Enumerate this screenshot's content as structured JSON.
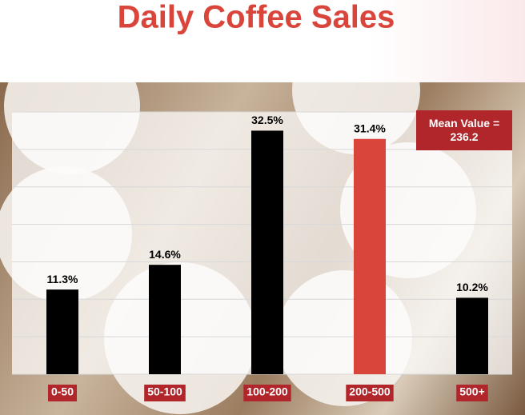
{
  "chart_data": {
    "type": "bar",
    "title": "Daily Coffee Sales",
    "categories": [
      "0-50",
      "50-100",
      "100-200",
      "200-500",
      "500+"
    ],
    "values": [
      11.3,
      14.6,
      32.5,
      31.4,
      10.2
    ],
    "value_labels": [
      "11.3%",
      "14.6%",
      "32.5%",
      "31.4%",
      "10.2%"
    ],
    "colors": [
      "#000000",
      "#000000",
      "#000000",
      "#d9453a",
      "#000000"
    ],
    "ylim": [
      0,
      35
    ],
    "yticks": [
      0,
      5,
      10,
      15,
      20,
      25,
      30,
      35
    ],
    "grid": true,
    "annotation": "Mean Value = 236.2"
  }
}
